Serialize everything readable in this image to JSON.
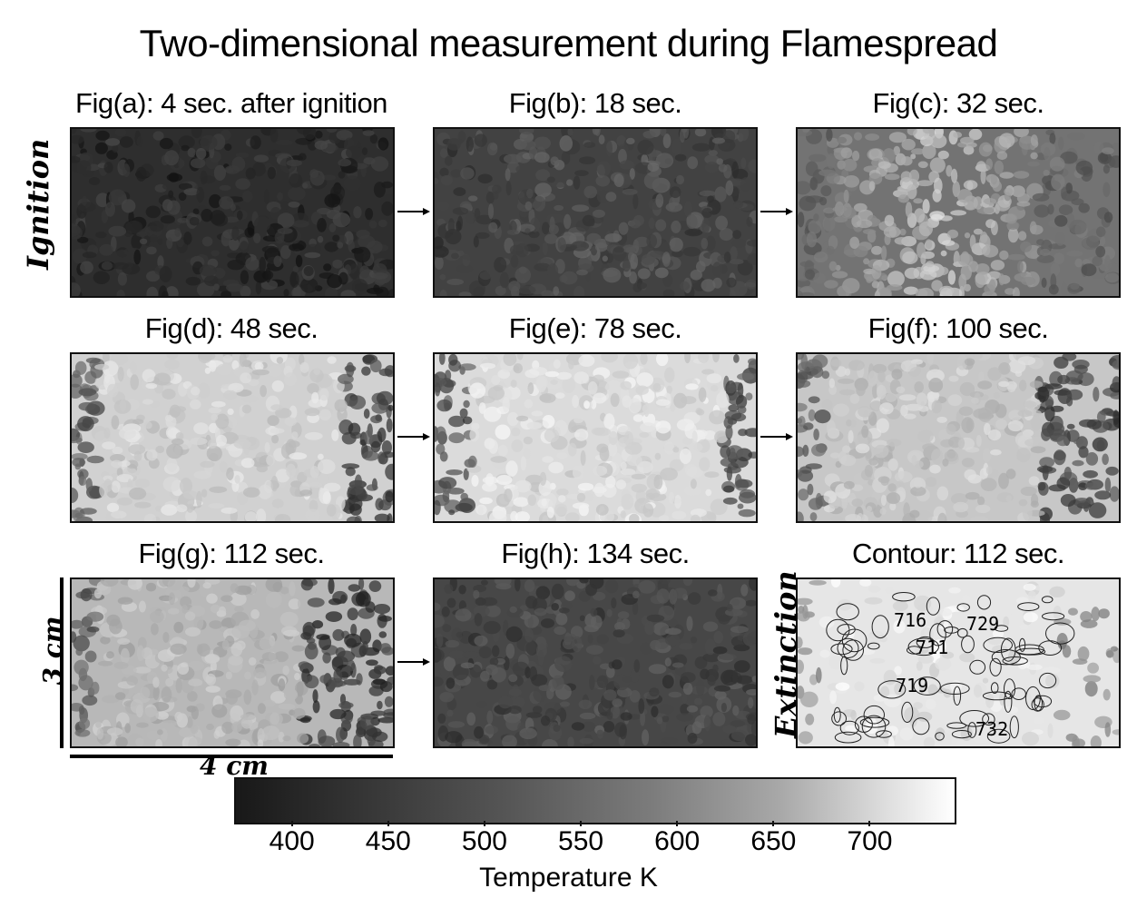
{
  "title": "Two-dimensional measurement during Flamespread",
  "panels": [
    {
      "caption": "Fig(a): 4 sec. after ignition",
      "level": 0.18
    },
    {
      "caption": "Fig(b): 18 sec.",
      "level": 0.26
    },
    {
      "caption": "Fig(c): 32 sec.",
      "level": 0.45
    },
    {
      "caption": "Fig(d): 48 sec.",
      "level": 0.82
    },
    {
      "caption": "Fig(e): 78 sec.",
      "level": 0.86
    },
    {
      "caption": "Fig(f): 100 sec.",
      "level": 0.78
    },
    {
      "caption": "Fig(g): 112 sec.",
      "level": 0.72
    },
    {
      "caption": "Fig(h): 134 sec.",
      "level": 0.28
    },
    {
      "caption": "Contour: 112 sec.",
      "level": 0.9
    }
  ],
  "side_labels": {
    "ignition": "Ignition",
    "extinction": "Extinction"
  },
  "scale": {
    "vertical": "3 cm",
    "horizontal": "4 cm"
  },
  "contour_labels": [
    "716",
    "729",
    "711",
    "719",
    "732"
  ],
  "colorbar": {
    "label": "Temperature K",
    "ticks": [
      "400",
      "450",
      "500",
      "550",
      "600",
      "650",
      "700"
    ],
    "range": [
      370,
      745
    ]
  }
}
